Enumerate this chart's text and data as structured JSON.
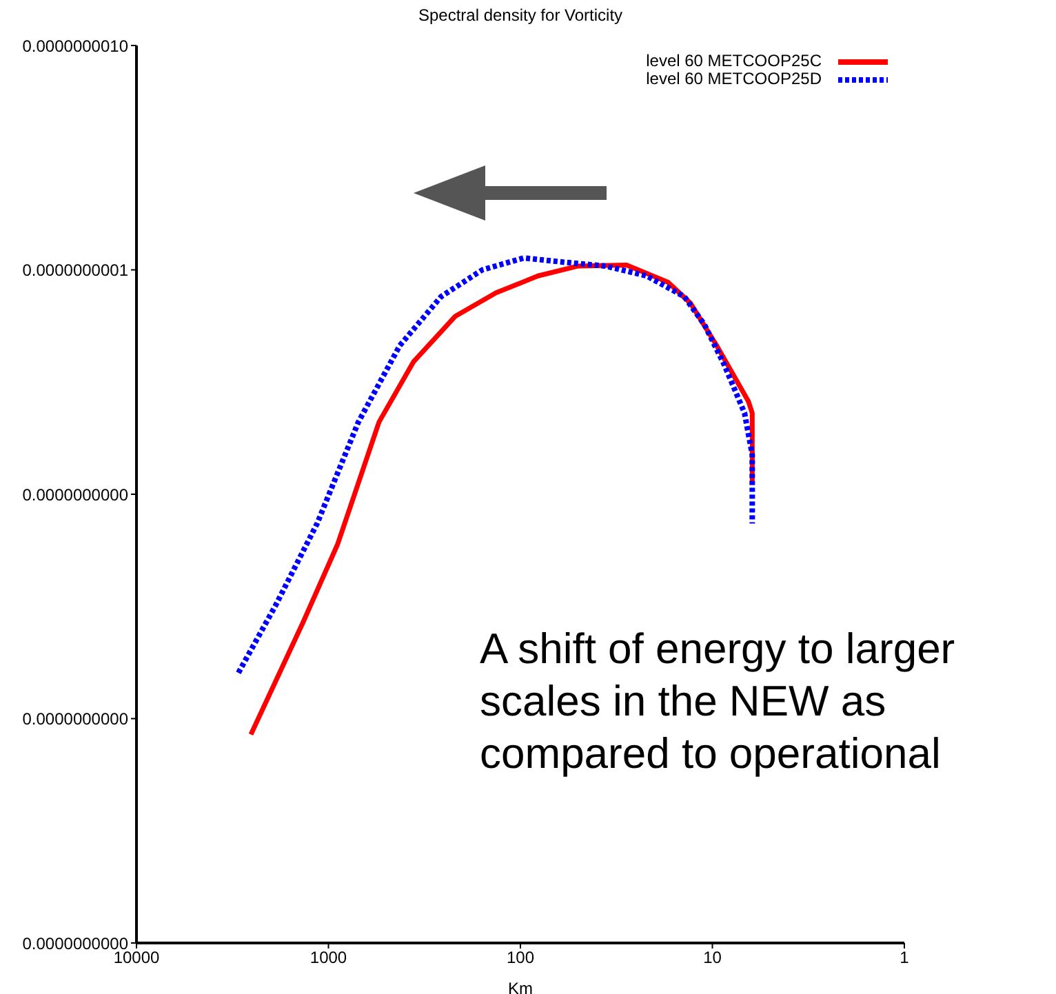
{
  "chart_data": {
    "type": "line",
    "title": "Spectral density for Vorticity",
    "xlabel": "Km",
    "log": "xy",
    "xlim": [
      10000,
      1
    ],
    "xticks": [
      10000,
      1000,
      100,
      10,
      1
    ],
    "ylim": [
      1e-13,
      1e-09
    ],
    "yticks": [
      {
        "value": 1e-09,
        "label": "0.0000000010"
      },
      {
        "value": 1e-10,
        "label": "0.0000000001"
      },
      {
        "value": 1e-11,
        "label": "0.0000000000"
      },
      {
        "value": 1e-12,
        "label": "0.0000000000"
      },
      {
        "value": 1e-13,
        "label": "0.0000000000"
      }
    ],
    "grid": false,
    "legend": "top right",
    "marker": "none",
    "annotations": [
      "A shift of energy to larger scales in the NEW as compared to operational"
    ],
    "series": [
      {
        "name": "level 60 METCOOP25C",
        "color": "#ff0000",
        "line_style": "solid",
        "x": [
          2535,
          1352,
          895,
          545,
          360,
          219,
          134,
          81,
          50,
          28,
          17,
          13,
          9.5,
          6.5,
          6.2,
          6.2
        ],
        "values": [
          8.5e-13,
          2.7e-12,
          6e-12,
          2.1e-11,
          3.9e-11,
          6.2e-11,
          7.9e-11,
          9.4e-11,
          1.04e-10,
          1.05e-10,
          8.8e-11,
          7.1e-11,
          4.6e-11,
          2.6e-11,
          2.3e-11,
          1.1e-11
        ]
      },
      {
        "name": "level 60 METCOOP25D",
        "color": "#0000ff",
        "line_style": "dotted",
        "x": [
          2944,
          1884,
          1146,
          698,
          425,
          259,
          158,
          96,
          58,
          36,
          22,
          14,
          11,
          8.7,
          6.8,
          6.2,
          6.2
        ],
        "values": [
          1.6e-12,
          3.2e-12,
          7.4e-12,
          2.1e-11,
          4.6e-11,
          7.6e-11,
          1e-10,
          1.13e-10,
          1.08e-10,
          1.04e-10,
          9.4e-11,
          7.6e-11,
          5.7e-11,
          3.8e-11,
          2.3e-11,
          1.5e-11,
          7.4e-12
        ]
      }
    ]
  }
}
